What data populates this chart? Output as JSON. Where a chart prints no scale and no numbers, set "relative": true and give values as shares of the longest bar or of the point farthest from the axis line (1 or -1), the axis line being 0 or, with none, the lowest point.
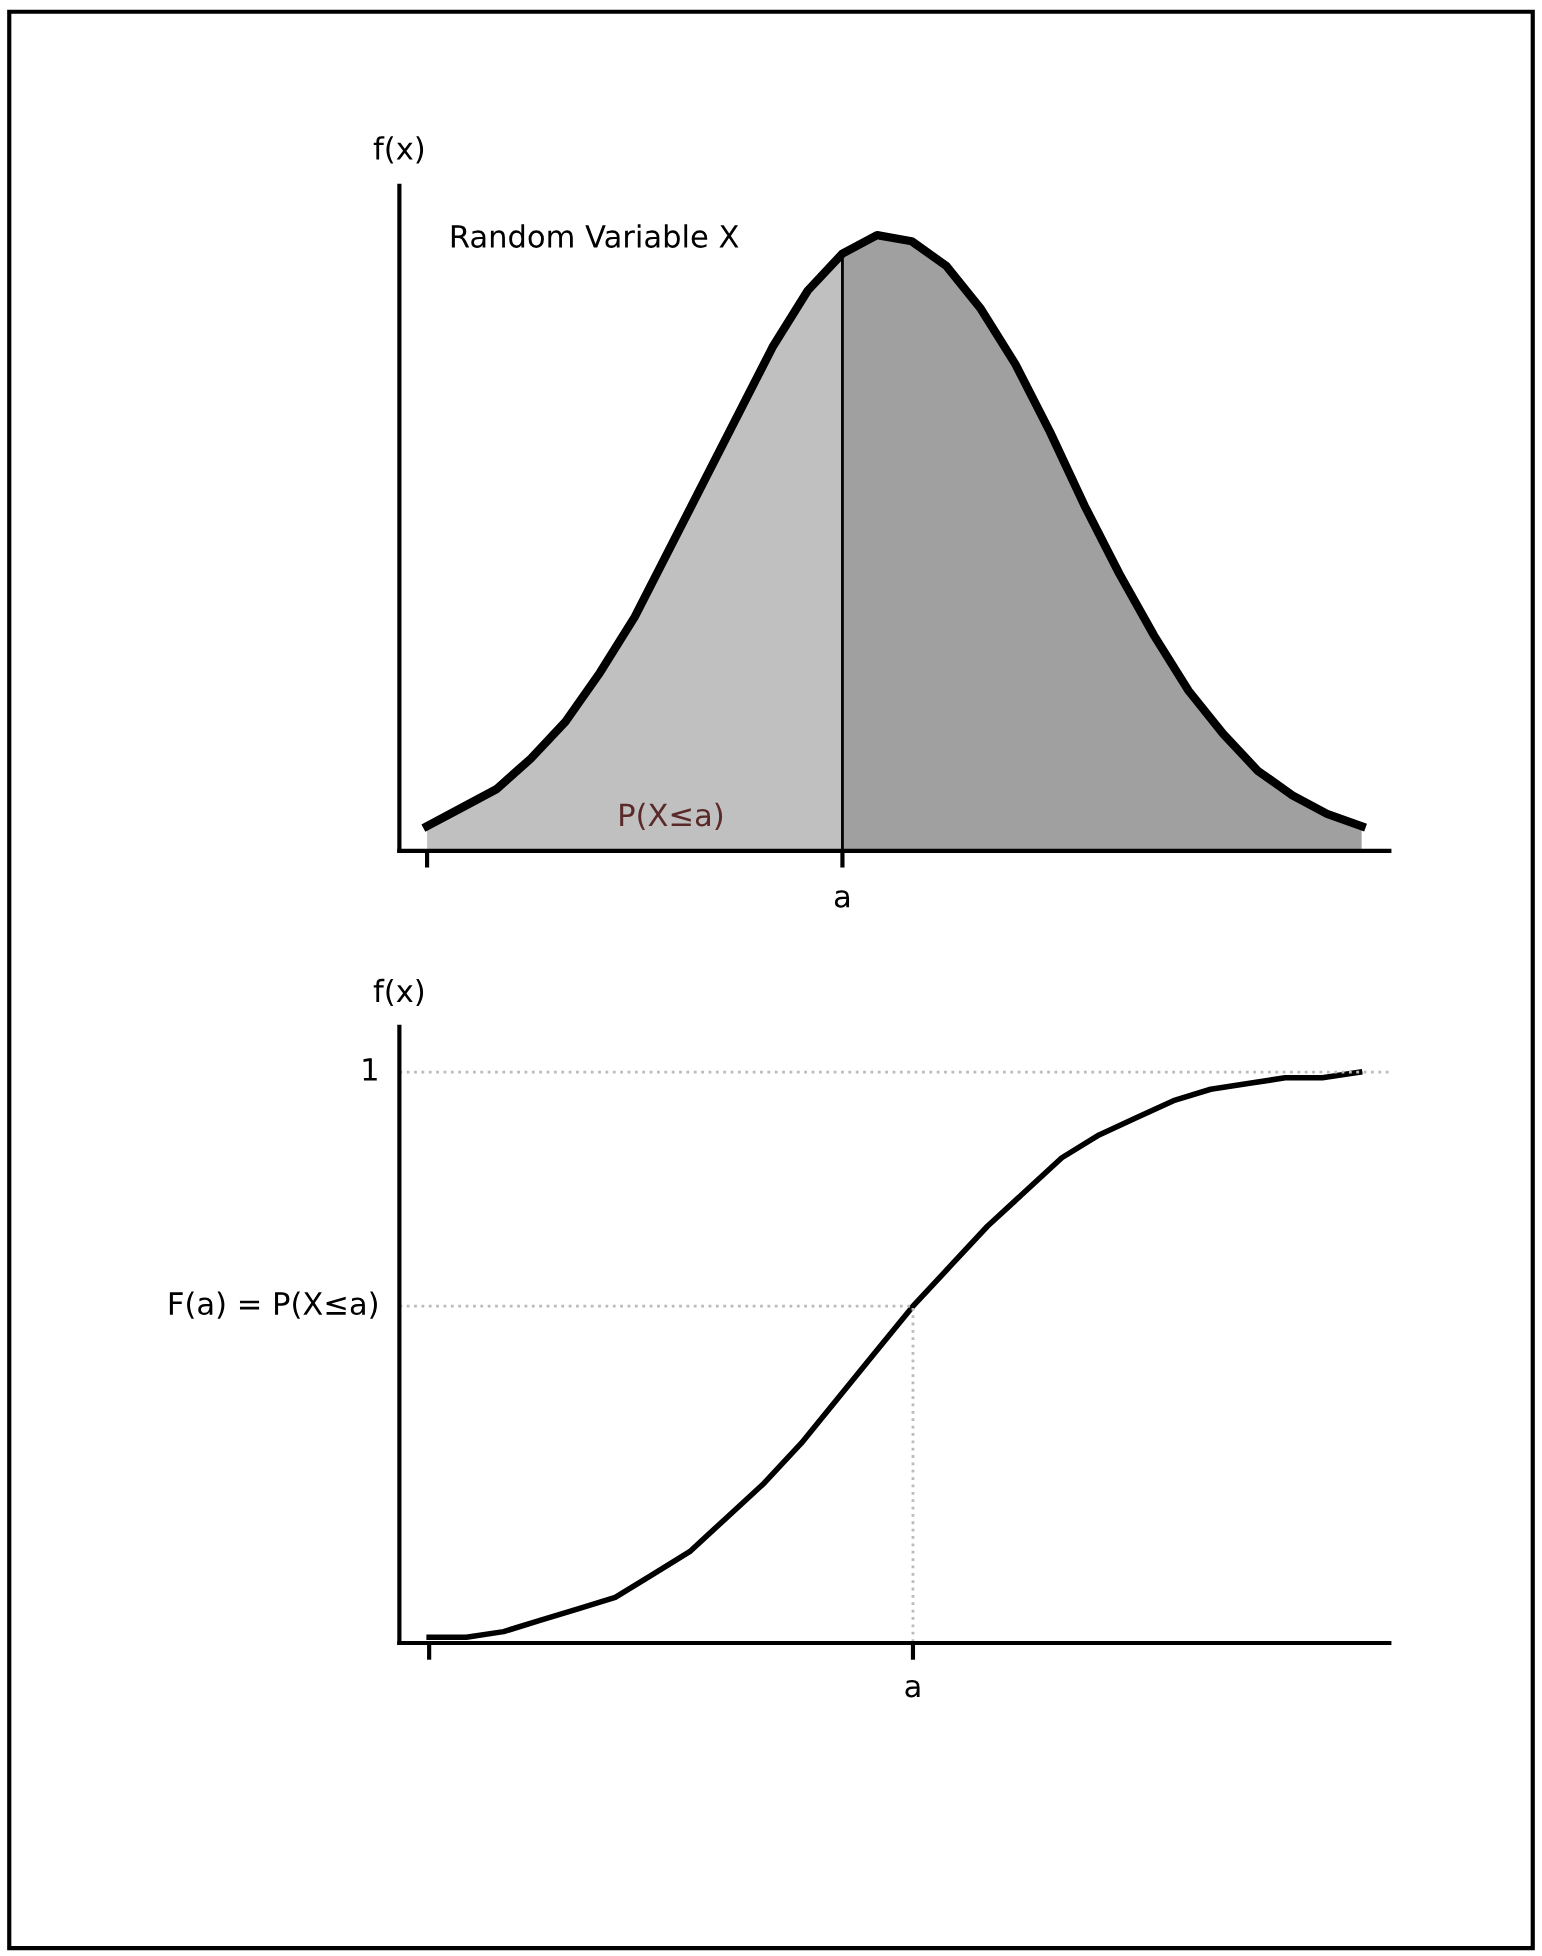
{
  "chart_data": [
    {
      "type": "area",
      "relative": true,
      "ylabel": "f(x)",
      "grid": false,
      "legend": false,
      "categories": [
        null,
        null,
        null,
        null,
        null,
        null,
        null,
        null,
        null,
        null,
        null,
        null,
        null,
        null,
        null,
        null,
        null,
        null,
        null,
        null,
        null,
        null,
        null,
        null,
        null,
        null,
        null,
        null
      ],
      "series": [
        {
          "type": "area",
          "color": "#c0c0c0",
          "values": [
            0.04,
            0.07,
            0.1,
            0.15,
            0.21,
            0.29,
            0.38,
            0.49,
            0.6,
            0.71,
            0.82,
            0.91,
            0.97,
            null,
            null,
            null,
            null,
            null,
            null,
            null,
            null,
            null,
            null,
            null,
            null,
            null,
            null,
            null
          ]
        },
        {
          "type": "area",
          "color": "#a0a0a0",
          "values": [
            null,
            null,
            null,
            null,
            null,
            null,
            null,
            null,
            null,
            null,
            null,
            null,
            0.97,
            1.0,
            0.99,
            0.95,
            0.88,
            0.79,
            0.68,
            0.56,
            0.45,
            0.35,
            0.26,
            0.19,
            0.13,
            0.09,
            0.06,
            0.04
          ]
        },
        {
          "type": "line",
          "color": "#000000",
          "values": [
            0.04,
            0.07,
            0.1,
            0.15,
            0.21,
            0.29,
            0.38,
            0.49,
            0.6,
            0.71,
            0.82,
            0.91,
            0.97,
            1.0,
            0.99,
            0.95,
            0.88,
            0.79,
            0.68,
            0.56,
            0.45,
            0.35,
            0.26,
            0.19,
            0.13,
            0.09,
            0.06,
            0.04
          ]
        }
      ],
      "annotations": [
        "Random Variable X",
        "P(X≤a)",
        "a"
      ]
    },
    {
      "type": "line",
      "relative": true,
      "ylabel": "f(x)",
      "grid": false,
      "legend": false,
      "categories": [
        null,
        null,
        null,
        null,
        null,
        null,
        null,
        null,
        null,
        null,
        null,
        null,
        null,
        null,
        null,
        null,
        null,
        null,
        null,
        null,
        null,
        null,
        null,
        null,
        null,
        null
      ],
      "series": [
        {
          "color": "#000000",
          "values": [
            0.01,
            0.01,
            0.02,
            0.04,
            0.06,
            0.08,
            0.12,
            0.16,
            0.22,
            0.28,
            0.35,
            0.43,
            0.51,
            0.59,
            0.66,
            0.73,
            0.79,
            0.85,
            0.89,
            0.92,
            0.95,
            0.97,
            0.98,
            0.99,
            0.99,
            1.0
          ]
        }
      ],
      "ref_lines": [
        {
          "axis": "y",
          "value": 1,
          "label": "1",
          "color": "#bbbbbb",
          "line_style": "dotted"
        },
        {
          "axis": "y",
          "value": 0.59,
          "label": "F(a) = P(X≤a)",
          "color": "#bbbbbb",
          "line_style": "dotted"
        }
      ],
      "annotations": [
        "a"
      ]
    }
  ]
}
